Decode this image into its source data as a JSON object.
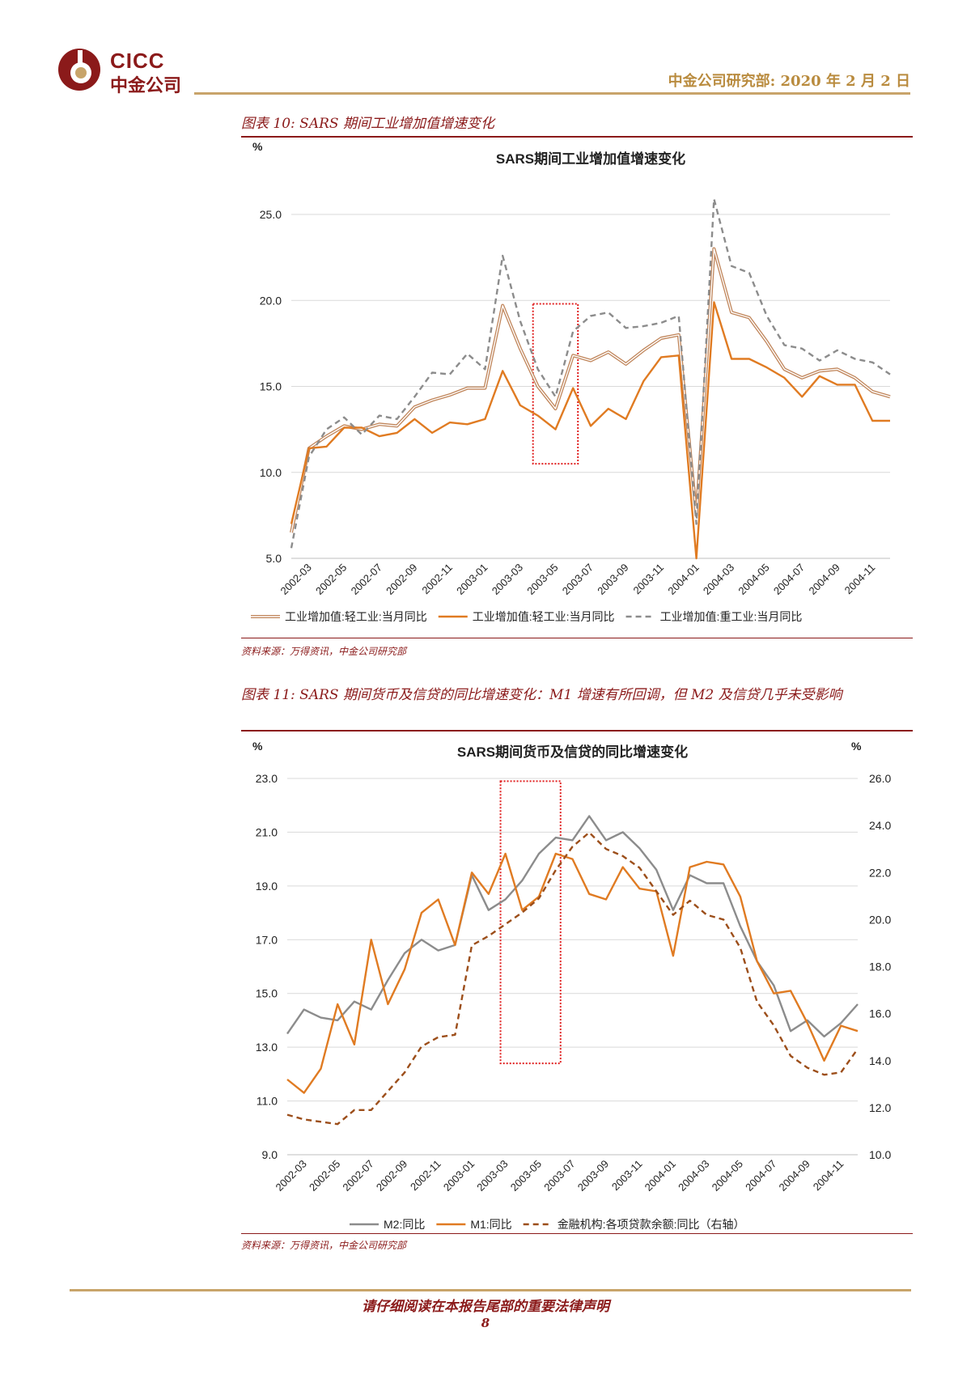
{
  "header": {
    "logo_en": "CICC",
    "logo_cn": "中金公司",
    "report_info": "中金公司研究部: 2020 年 2 月 2 日",
    "brand_color": "#8b1a1a"
  },
  "figure10": {
    "caption": "图表 10: SARS 期间工业增加值增速变化",
    "source": "资料来源：万得资讯，中金公司研究部"
  },
  "figure11": {
    "caption": "图表 11: SARS 期间货币及信贷的同比增速变化：M1 增速有所回调，但 M2 及信贷几乎未受影响",
    "source": "资料来源：万得资讯，中金公司研究部"
  },
  "footer": {
    "note": "请仔细阅读在本报告尾部的重要法律声明",
    "page": "8"
  },
  "chart_data": [
    {
      "type": "line",
      "title": "SARS期间工业增加值增速变化",
      "ylabel": "%",
      "ylim": [
        5.0,
        25.0
      ],
      "yticks": [
        "5.0",
        "10.0",
        "15.0",
        "20.0",
        "25.0"
      ],
      "x": [
        "2002-02",
        "2002-03",
        "2002-04",
        "2002-05",
        "2002-06",
        "2002-07",
        "2002-08",
        "2002-09",
        "2002-10",
        "2002-11",
        "2002-12",
        "2003-01",
        "2003-02",
        "2003-03",
        "2003-04",
        "2003-05",
        "2003-06",
        "2003-07",
        "2003-08",
        "2003-09",
        "2003-10",
        "2003-11",
        "2003-12",
        "2004-01",
        "2004-02",
        "2004-03",
        "2004-04",
        "2004-05",
        "2004-06",
        "2004-07",
        "2004-08",
        "2004-09",
        "2004-10",
        "2004-11",
        "2004-12"
      ],
      "xticks": [
        "2002-03",
        "2002-05",
        "2002-07",
        "2002-09",
        "2002-11",
        "2003-01",
        "2003-03",
        "2003-05",
        "2003-07",
        "2003-09",
        "2003-11",
        "2004-01",
        "2004-03",
        "2004-05",
        "2004-07",
        "2004-09",
        "2004-11"
      ],
      "highlight_range": {
        "from": "2003-04",
        "to": "2003-06",
        "ymin": 10.5,
        "ymax": 19.8
      },
      "series": [
        {
          "name": "工业增加值:轻工业:当月同比",
          "style": "double",
          "color": "#c0855a",
          "values": [
            6.5,
            11.4,
            12.1,
            12.7,
            12.5,
            12.8,
            12.7,
            13.8,
            14.2,
            14.5,
            14.9,
            14.9,
            19.7,
            17.2,
            15.0,
            13.7,
            16.8,
            16.5,
            17.0,
            16.3,
            17.1,
            17.8,
            18.0,
            7.5,
            23.0,
            19.3,
            19.0,
            17.6,
            16.0,
            15.5,
            15.9,
            16.0,
            15.5,
            14.7,
            14.4
          ]
        },
        {
          "name": "工业增加值:轻工业:当月同比",
          "style": "solid",
          "color": "#e07b22",
          "values": [
            7.0,
            11.4,
            11.5,
            12.6,
            12.6,
            12.1,
            12.3,
            13.1,
            12.3,
            12.9,
            12.8,
            13.1,
            15.9,
            13.9,
            13.3,
            12.5,
            14.9,
            12.7,
            13.7,
            13.1,
            15.3,
            16.7,
            16.8,
            5.0,
            19.9,
            16.6,
            16.6,
            16.1,
            15.5,
            14.4,
            15.6,
            15.1,
            15.1,
            13.0,
            13.0
          ]
        },
        {
          "name": "工业增加值:重工业:当月同比",
          "style": "dashed",
          "color": "#8c8c8c",
          "values": [
            5.6,
            10.9,
            12.5,
            13.2,
            12.2,
            13.3,
            13.1,
            14.4,
            15.8,
            15.7,
            16.9,
            16.0,
            22.6,
            18.8,
            16.0,
            14.4,
            18.2,
            19.1,
            19.3,
            18.4,
            18.5,
            18.7,
            19.1,
            7.0,
            25.9,
            22.0,
            21.6,
            19.1,
            17.4,
            17.2,
            16.5,
            17.1,
            16.6,
            16.4,
            15.7
          ]
        }
      ]
    },
    {
      "type": "line",
      "title": "SARS期间货币及信贷的同比增速变化",
      "ylabel": "%",
      "y2label": "%",
      "ylim": [
        9.0,
        23.0
      ],
      "yticks": [
        "9.0",
        "11.0",
        "13.0",
        "15.0",
        "17.0",
        "19.0",
        "21.0",
        "23.0"
      ],
      "y2lim": [
        10.0,
        26.0
      ],
      "y2ticks": [
        "10.0",
        "12.0",
        "14.0",
        "16.0",
        "18.0",
        "20.0",
        "22.0",
        "24.0",
        "26.0"
      ],
      "x": [
        "2002-02",
        "2002-03",
        "2002-04",
        "2002-05",
        "2002-06",
        "2002-07",
        "2002-08",
        "2002-09",
        "2002-10",
        "2002-11",
        "2002-12",
        "2003-01",
        "2003-02",
        "2003-03",
        "2003-04",
        "2003-05",
        "2003-06",
        "2003-07",
        "2003-08",
        "2003-09",
        "2003-10",
        "2003-11",
        "2003-12",
        "2004-01",
        "2004-02",
        "2004-03",
        "2004-04",
        "2004-05",
        "2004-06",
        "2004-07",
        "2004-08",
        "2004-09",
        "2004-10",
        "2004-11",
        "2004-12"
      ],
      "xticks": [
        "2002-03",
        "2002-05",
        "2002-07",
        "2002-09",
        "2002-11",
        "2003-01",
        "2003-03",
        "2003-05",
        "2003-07",
        "2003-09",
        "2003-11",
        "2004-01",
        "2004-03",
        "2004-05",
        "2004-07",
        "2004-09",
        "2004-11"
      ],
      "highlight_range": {
        "from": "2003-03",
        "to": "2003-06",
        "ymin": 12.4,
        "ymax": 22.9
      },
      "series": [
        {
          "name": "M2:同比",
          "style": "solid",
          "color": "#8c8c8c",
          "axis": "left",
          "values": [
            13.5,
            14.4,
            14.1,
            14.0,
            14.7,
            14.4,
            15.5,
            16.5,
            17.0,
            16.6,
            16.8,
            19.4,
            18.1,
            18.5,
            19.2,
            20.2,
            20.8,
            20.7,
            21.6,
            20.7,
            21.0,
            20.4,
            19.6,
            18.1,
            19.4,
            19.1,
            19.1,
            17.5,
            16.2,
            15.3,
            13.6,
            14.0,
            13.4,
            13.9,
            14.6
          ]
        },
        {
          "name": "M1:同比",
          "style": "solid",
          "color": "#e07b22",
          "axis": "left",
          "values": [
            11.8,
            11.3,
            12.2,
            14.6,
            13.1,
            17.0,
            14.6,
            15.9,
            18.0,
            18.5,
            16.8,
            19.5,
            18.7,
            20.2,
            18.1,
            18.6,
            20.2,
            20.0,
            18.7,
            18.5,
            19.7,
            18.9,
            18.8,
            16.4,
            19.7,
            19.9,
            19.8,
            18.6,
            16.2,
            15.0,
            15.1,
            13.9,
            12.5,
            13.8,
            13.6
          ]
        },
        {
          "name": "金融机构:各项贷款余额:同比（右轴）",
          "style": "dashed",
          "color": "#9c4e1a",
          "axis": "right",
          "values": [
            11.7,
            11.5,
            11.4,
            11.3,
            11.9,
            11.9,
            12.7,
            13.5,
            14.6,
            15.0,
            15.1,
            18.9,
            19.3,
            19.8,
            20.3,
            20.9,
            22.1,
            23.1,
            23.7,
            23.0,
            22.7,
            22.2,
            21.2,
            20.2,
            20.8,
            20.2,
            20.0,
            18.8,
            16.5,
            15.5,
            14.2,
            13.7,
            13.4,
            13.5,
            14.5
          ]
        }
      ]
    }
  ]
}
